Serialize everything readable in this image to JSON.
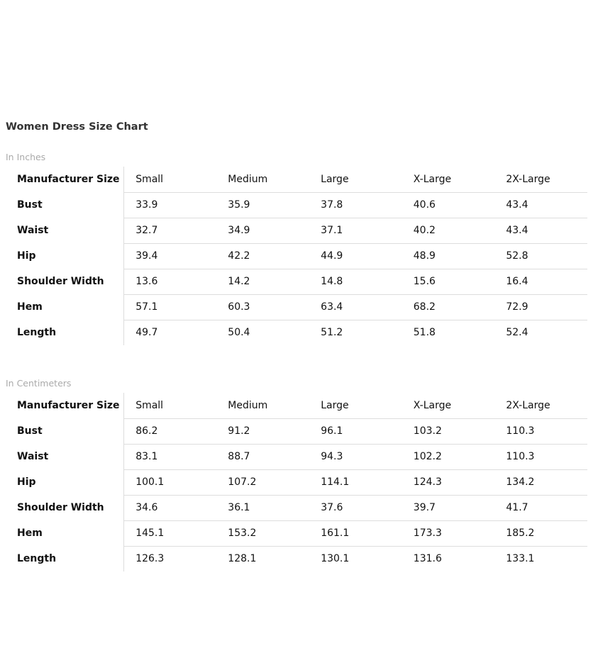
{
  "title": "Women Dress Size Chart",
  "tables": [
    {
      "unit_label": "In Inches",
      "header": {
        "label": "Manufacturer Size",
        "sizes": [
          "Small",
          "Medium",
          "Large",
          "X-Large",
          "2X-Large"
        ]
      },
      "rows": [
        {
          "label": "Bust",
          "values": [
            "33.9",
            "35.9",
            "37.8",
            "40.6",
            "43.4"
          ]
        },
        {
          "label": "Waist",
          "values": [
            "32.7",
            "34.9",
            "37.1",
            "40.2",
            "43.4"
          ]
        },
        {
          "label": "Hip",
          "values": [
            "39.4",
            "42.2",
            "44.9",
            "48.9",
            "52.8"
          ]
        },
        {
          "label": "Shoulder Width",
          "values": [
            "13.6",
            "14.2",
            "14.8",
            "15.6",
            "16.4"
          ]
        },
        {
          "label": "Hem",
          "values": [
            "57.1",
            "60.3",
            "63.4",
            "68.2",
            "72.9"
          ]
        },
        {
          "label": "Length",
          "values": [
            "49.7",
            "50.4",
            "51.2",
            "51.8",
            "52.4"
          ]
        }
      ]
    },
    {
      "unit_label": "In Centimeters",
      "header": {
        "label": "Manufacturer Size",
        "sizes": [
          "Small",
          "Medium",
          "Large",
          "X-Large",
          "2X-Large"
        ]
      },
      "rows": [
        {
          "label": "Bust",
          "values": [
            "86.2",
            "91.2",
            "96.1",
            "103.2",
            "110.3"
          ]
        },
        {
          "label": "Waist",
          "values": [
            "83.1",
            "88.7",
            "94.3",
            "102.2",
            "110.3"
          ]
        },
        {
          "label": "Hip",
          "values": [
            "100.1",
            "107.2",
            "114.1",
            "124.3",
            "134.2"
          ]
        },
        {
          "label": "Shoulder Width",
          "values": [
            "34.6",
            "36.1",
            "37.6",
            "39.7",
            "41.7"
          ]
        },
        {
          "label": "Hem",
          "values": [
            "145.1",
            "153.2",
            "161.1",
            "173.3",
            "185.2"
          ]
        },
        {
          "label": "Length",
          "values": [
            "126.3",
            "128.1",
            "130.1",
            "131.6",
            "133.1"
          ]
        }
      ]
    }
  ]
}
